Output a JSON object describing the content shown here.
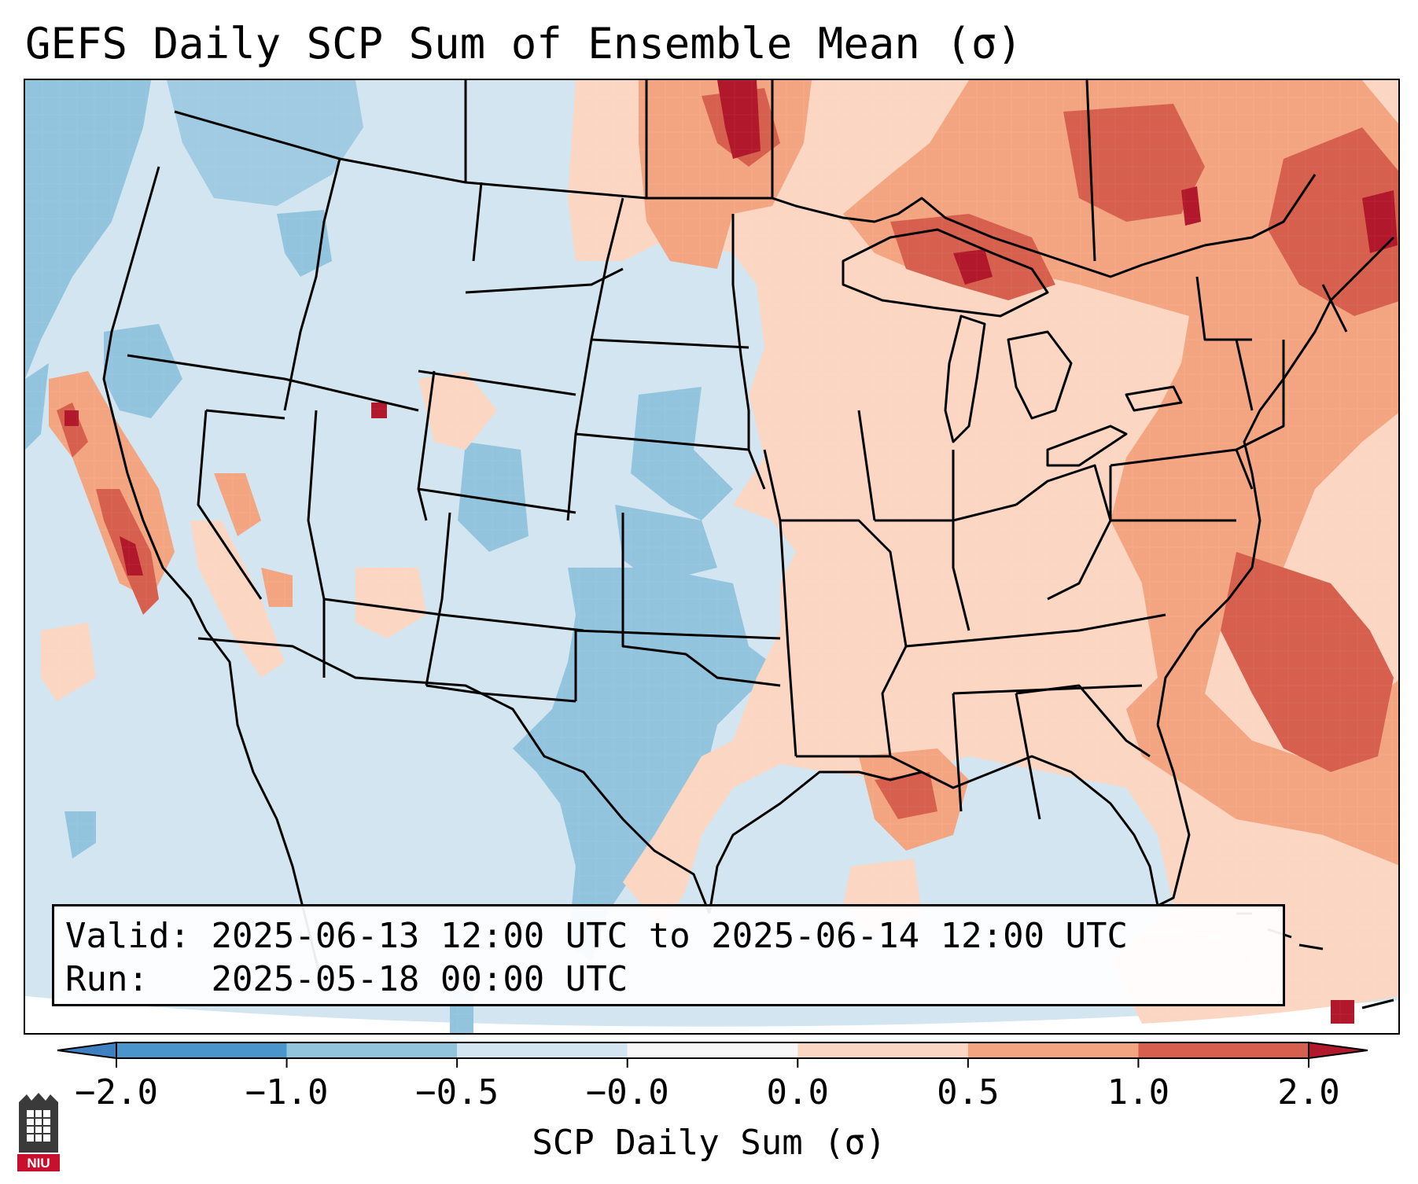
{
  "title": "GEFS Daily SCP Sum of Ensemble Mean (σ)",
  "info": {
    "valid_label": "Valid:",
    "valid_value": "2025-06-13 12:00 UTC to 2025-06-14 12:00 UTC",
    "run_label": "Run:",
    "run_value": "2025-05-18 00:00 UTC"
  },
  "colorbar": {
    "label": "SCP Daily Sum (σ)",
    "ticks": [
      "−2.0",
      "−1.0",
      "−0.5",
      "−0.0",
      "0.0",
      "0.5",
      "1.0",
      "2.0"
    ],
    "bins": [
      {
        "range": "<-2.0",
        "color": "#3d7fc0"
      },
      {
        "range": "-2.0 to -1.0",
        "color": "#4a96cc"
      },
      {
        "range": "-1.0 to -0.5",
        "color": "#93c4de"
      },
      {
        "range": "-0.5 to -0.0",
        "color": "#d2e5f0"
      },
      {
        "range": "-0.0 to 0.0",
        "color": "#f7f7f7"
      },
      {
        "range": "0.0 to 0.5",
        "color": "#fbd6c2"
      },
      {
        "range": "0.5 to 1.0",
        "color": "#f3a582"
      },
      {
        "range": "1.0 to 2.0",
        "color": "#d6604d"
      },
      {
        "range": ">2.0",
        "color": "#b2182b"
      }
    ]
  },
  "logo": {
    "text": "NIU"
  }
}
